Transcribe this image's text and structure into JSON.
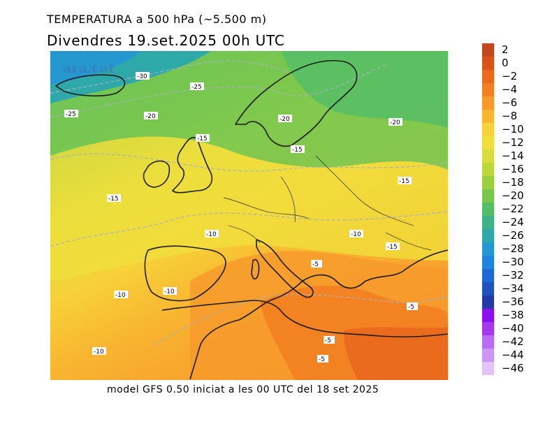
{
  "header": {
    "title": "TEMPERATURA a 500 hPa (~5.500 m)",
    "subtitle": "Divendres  19.set.2025  00h UTC"
  },
  "footer": {
    "text": "model GFS 0.50 iniciat a les 00 UTC del 18 set 2025"
  },
  "map": {
    "watermark": "ara.cat",
    "contour_labels": [
      "-30",
      "-25",
      "-25",
      "-20",
      "-20",
      "-20",
      "-15",
      "-15",
      "-15",
      "-15",
      "-15",
      "-10",
      "-10",
      "-10",
      "-10",
      "-10",
      "-5",
      "-5",
      "-5",
      "-5"
    ]
  },
  "colorbar": {
    "levels": [
      "2",
      "0",
      "−2",
      "−4",
      "−6",
      "−8",
      "−10",
      "−12",
      "−14",
      "−16",
      "−18",
      "−20",
      "−22",
      "−24",
      "−26",
      "−28",
      "−30",
      "−32",
      "−34",
      "−36",
      "−38",
      "−40",
      "−42",
      "−44",
      "−46"
    ],
    "colors": [
      "#c2461e",
      "#d9541a",
      "#ea6a1e",
      "#f27f22",
      "#f79a2c",
      "#f8b530",
      "#f7d23a",
      "#f0de3c",
      "#d8dc3c",
      "#bcd63c",
      "#9ccf40",
      "#78c650",
      "#56bd66",
      "#3fb385",
      "#2fa8aa",
      "#2599cf",
      "#1f83e0",
      "#1f68d5",
      "#1f52bd",
      "#2239a6",
      "#8a10ef",
      "#a338ee",
      "#b86cf0",
      "#cb97f3",
      "#e0c4f6"
    ]
  }
}
